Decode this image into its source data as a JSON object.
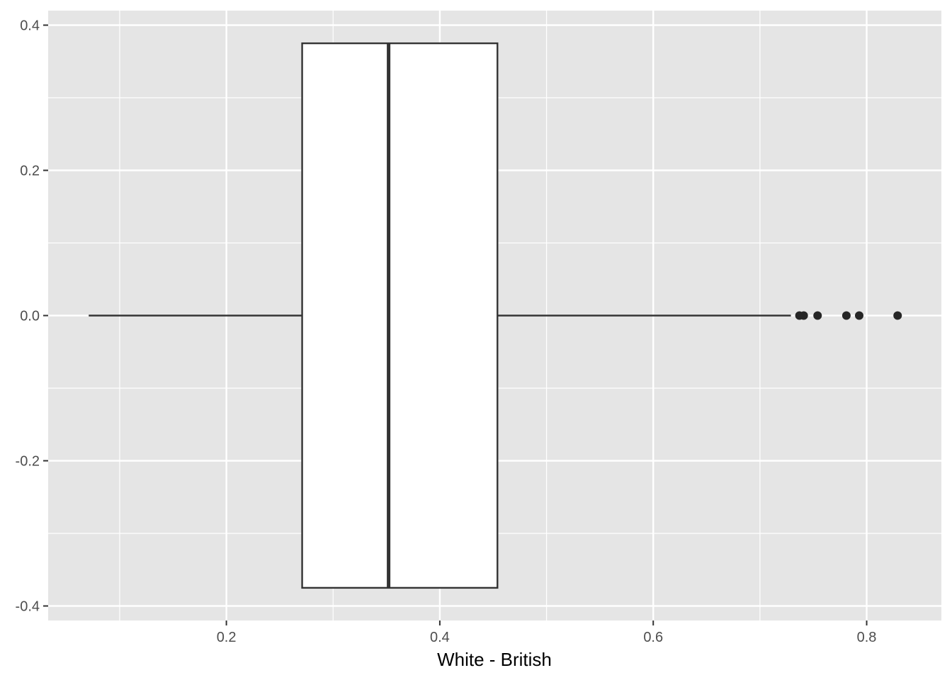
{
  "chart_data": {
    "type": "boxplot",
    "xlabel": "White - British",
    "ylabel": "",
    "xlim": [
      0.033,
      0.87
    ],
    "ylim": [
      -0.42,
      0.42
    ],
    "x_ticks": [
      0.2,
      0.4,
      0.6,
      0.8
    ],
    "x_tick_labels": [
      "0.2",
      "0.4",
      "0.6",
      "0.8"
    ],
    "x_minor_ticks": [
      0.1,
      0.3,
      0.5,
      0.7
    ],
    "y_ticks": [
      -0.4,
      -0.2,
      0.0,
      0.2,
      0.4
    ],
    "y_tick_labels": [
      "-0.4",
      "-0.2",
      "0.0",
      "0.2",
      "0.4"
    ],
    "y_minor_ticks": [
      -0.3,
      -0.1,
      0.1,
      0.3
    ],
    "grid": true,
    "box": {
      "y_center": 0.0,
      "half_width": 0.375,
      "whisker_low": 0.071,
      "q1": 0.271,
      "median": 0.352,
      "q3": 0.454,
      "whisker_high": 0.729
    },
    "outliers": [
      0.737,
      0.741,
      0.754,
      0.781,
      0.793,
      0.829
    ],
    "colors": {
      "panel": "#e5e5e5",
      "grid": "#ffffff",
      "box_fill": "#ffffff",
      "box_line": "#333333",
      "points": "#262626",
      "ticks": "#333333"
    }
  }
}
